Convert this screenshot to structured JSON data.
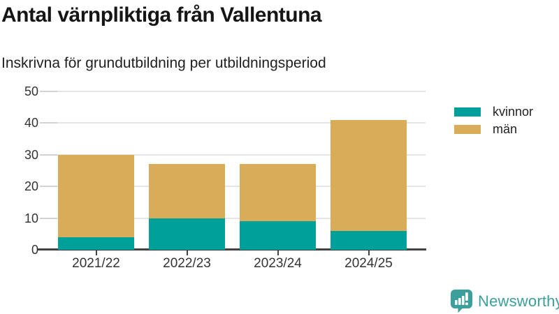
{
  "header": {
    "title": "Antal värnpliktiga från Vallentuna",
    "subtitle": "Inskrivna för grundutbildning per utbildningsperiod"
  },
  "chart_data": {
    "type": "bar",
    "stacked": true,
    "title": "Antal värnpliktiga från Vallentuna",
    "subtitle": "Inskrivna för grundutbildning per utbildningsperiod",
    "categories": [
      "2021/22",
      "2022/23",
      "2023/24",
      "2024/25"
    ],
    "series": [
      {
        "name": "kvinnor",
        "color": "#00a09a",
        "values": [
          4,
          10,
          9,
          6
        ]
      },
      {
        "name": "män",
        "color": "#d9ac5a",
        "values": [
          26,
          17,
          18,
          35
        ]
      }
    ],
    "stack_totals": [
      30,
      27,
      27,
      41
    ],
    "xlabel": "",
    "ylabel": "",
    "ylim": [
      0,
      50
    ],
    "yticks": [
      0,
      10,
      20,
      30,
      40,
      50
    ],
    "grid": true,
    "legend_position": "right"
  },
  "branding": {
    "logo_text": "Newsworthy",
    "logo_icon": "bar-chart-speech-bubble-icon",
    "color": "#3ba09b"
  }
}
